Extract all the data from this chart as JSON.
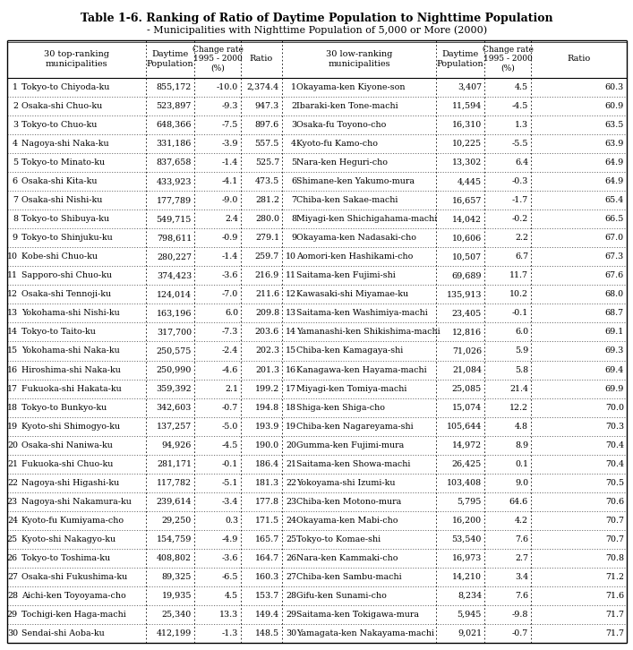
{
  "title1": "Table 1-6. Ranking of Ratio of Daytime Population to Nighttime Population",
  "title2": "- Municipalities with Nighttime Population of 5,000 or More (2000)",
  "left_data": [
    [
      1,
      "Tokyo-to Chiyoda-ku",
      "855,172",
      "-10.0",
      "2,374.4"
    ],
    [
      2,
      "Osaka-shi Chuo-ku",
      "523,897",
      "-9.3",
      "947.3"
    ],
    [
      3,
      "Tokyo-to Chuo-ku",
      "648,366",
      "-7.5",
      "897.6"
    ],
    [
      4,
      "Nagoya-shi Naka-ku",
      "331,186",
      "-3.9",
      "557.5"
    ],
    [
      5,
      "Tokyo-to Minato-ku",
      "837,658",
      "-1.4",
      "525.7"
    ],
    [
      6,
      "Osaka-shi Kita-ku",
      "433,923",
      "-4.1",
      "473.5"
    ],
    [
      7,
      "Osaka-shi Nishi-ku",
      "177,789",
      "-9.0",
      "281.2"
    ],
    [
      8,
      "Tokyo-to Shibuya-ku",
      "549,715",
      "2.4",
      "280.0"
    ],
    [
      9,
      "Tokyo-to Shinjuku-ku",
      "798,611",
      "-0.9",
      "279.1"
    ],
    [
      10,
      "Kobe-shi Chuo-ku",
      "280,227",
      "-1.4",
      "259.7"
    ],
    [
      11,
      "Sapporo-shi Chuo-ku",
      "374,423",
      "-3.6",
      "216.9"
    ],
    [
      12,
      "Osaka-shi Tennoji-ku",
      "124,014",
      "-7.0",
      "211.6"
    ],
    [
      13,
      "Yokohama-shi Nishi-ku",
      "163,196",
      "6.0",
      "209.8"
    ],
    [
      14,
      "Tokyo-to Taito-ku",
      "317,700",
      "-7.3",
      "203.6"
    ],
    [
      15,
      "Yokohama-shi Naka-ku",
      "250,575",
      "-2.4",
      "202.3"
    ],
    [
      16,
      "Hiroshima-shi Naka-ku",
      "250,990",
      "-4.6",
      "201.3"
    ],
    [
      17,
      "Fukuoka-shi Hakata-ku",
      "359,392",
      "2.1",
      "199.2"
    ],
    [
      18,
      "Tokyo-to Bunkyo-ku",
      "342,603",
      "-0.7",
      "194.8"
    ],
    [
      19,
      "Kyoto-shi Shimogyo-ku",
      "137,257",
      "-5.0",
      "193.9"
    ],
    [
      20,
      "Osaka-shi Naniwa-ku",
      "94,926",
      "-4.5",
      "190.0"
    ],
    [
      21,
      "Fukuoka-shi Chuo-ku",
      "281,171",
      "-0.1",
      "186.4"
    ],
    [
      22,
      "Nagoya-shi Higashi-ku",
      "117,782",
      "-5.1",
      "181.3"
    ],
    [
      23,
      "Nagoya-shi Nakamura-ku",
      "239,614",
      "-3.4",
      "177.8"
    ],
    [
      24,
      "Kyoto-fu Kumiyama-cho",
      "29,250",
      "0.3",
      "171.5"
    ],
    [
      25,
      "Kyoto-shi Nakagyo-ku",
      "154,759",
      "-4.9",
      "165.7"
    ],
    [
      26,
      "Tokyo-to Toshima-ku",
      "408,802",
      "-3.6",
      "164.7"
    ],
    [
      27,
      "Osaka-shi Fukushima-ku",
      "89,325",
      "-6.5",
      "160.3"
    ],
    [
      28,
      "Aichi-ken Toyoyama-cho",
      "19,935",
      "4.5",
      "153.7"
    ],
    [
      29,
      "Tochigi-ken Haga-machi",
      "25,340",
      "13.3",
      "149.4"
    ],
    [
      30,
      "Sendai-shi Aoba-ku",
      "412,199",
      "-1.3",
      "148.5"
    ]
  ],
  "right_data": [
    [
      1,
      "Okayama-ken Kiyone-son",
      "3,407",
      "4.5",
      "60.3"
    ],
    [
      2,
      "Ibaraki-ken Tone-machi",
      "11,594",
      "-4.5",
      "60.9"
    ],
    [
      3,
      "Osaka-fu Toyono-cho",
      "16,310",
      "1.3",
      "63.5"
    ],
    [
      4,
      "Kyoto-fu Kamo-cho",
      "10,225",
      "-5.5",
      "63.9"
    ],
    [
      5,
      "Nara-ken Heguri-cho",
      "13,302",
      "6.4",
      "64.9"
    ],
    [
      6,
      "Shimane-ken Yakumo-mura",
      "4,445",
      "-0.3",
      "64.9"
    ],
    [
      7,
      "Chiba-ken Sakae-machi",
      "16,657",
      "-1.7",
      "65.4"
    ],
    [
      8,
      "Miyagi-ken Shichigahama-machi",
      "14,042",
      "-0.2",
      "66.5"
    ],
    [
      9,
      "Okayama-ken Nadasaki-cho",
      "10,606",
      "2.2",
      "67.0"
    ],
    [
      10,
      "Aomori-ken Hashikami-cho",
      "10,507",
      "6.7",
      "67.3"
    ],
    [
      11,
      "Saitama-ken Fujimi-shi",
      "69,689",
      "11.7",
      "67.6"
    ],
    [
      12,
      "Kawasaki-shi Miyamae-ku",
      "135,913",
      "10.2",
      "68.0"
    ],
    [
      13,
      "Saitama-ken Washimiya-machi",
      "23,405",
      "-0.1",
      "68.7"
    ],
    [
      14,
      "Yamanashi-ken Shikishima-machi",
      "12,816",
      "6.0",
      "69.1"
    ],
    [
      15,
      "Chiba-ken Kamagaya-shi",
      "71,026",
      "5.9",
      "69.3"
    ],
    [
      16,
      "Kanagawa-ken Hayama-machi",
      "21,084",
      "5.8",
      "69.4"
    ],
    [
      17,
      "Miyagi-ken Tomiya-machi",
      "25,085",
      "21.4",
      "69.9"
    ],
    [
      18,
      "Shiga-ken Shiga-cho",
      "15,074",
      "12.2",
      "70.0"
    ],
    [
      19,
      "Chiba-ken Nagareyama-shi",
      "105,644",
      "4.8",
      "70.3"
    ],
    [
      20,
      "Gumma-ken Fujimi-mura",
      "14,972",
      "8.9",
      "70.4"
    ],
    [
      21,
      "Saitama-ken Showa-machi",
      "26,425",
      "0.1",
      "70.4"
    ],
    [
      22,
      "Yokoyama-shi Izumi-ku",
      "103,408",
      "9.0",
      "70.5"
    ],
    [
      23,
      "Chiba-ken Motono-mura",
      "5,795",
      "64.6",
      "70.6"
    ],
    [
      24,
      "Okayama-ken Mabi-cho",
      "16,200",
      "4.2",
      "70.7"
    ],
    [
      25,
      "Tokyo-to Komae-shi",
      "53,540",
      "7.6",
      "70.7"
    ],
    [
      26,
      "Nara-ken Kammaki-cho",
      "16,973",
      "2.7",
      "70.8"
    ],
    [
      27,
      "Chiba-ken Sambu-machi",
      "14,210",
      "3.4",
      "71.2"
    ],
    [
      28,
      "Gifu-ken Sunami-cho",
      "8,234",
      "7.6",
      "71.6"
    ],
    [
      29,
      "Saitama-ken Tokigawa-mura",
      "5,945",
      "-9.8",
      "71.7"
    ],
    [
      30,
      "Yamagata-ken Nakayama-machi",
      "9,021",
      "-0.7",
      "71.7"
    ]
  ]
}
